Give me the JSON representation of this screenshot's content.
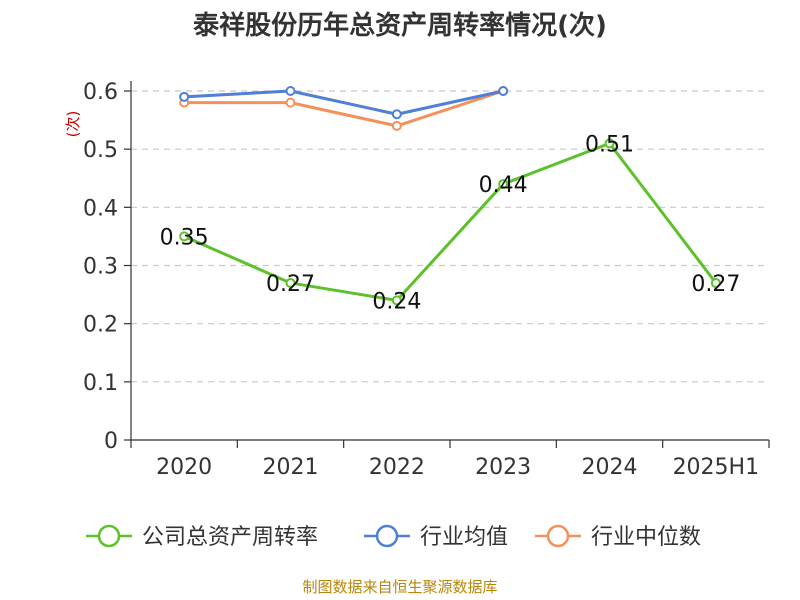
{
  "chart_data": {
    "type": "line",
    "title": "泰祥股份历年总资产周转率情况(次)",
    "ylabel": "(次)",
    "xlabel": "",
    "categories": [
      "2020",
      "2021",
      "2022",
      "2023",
      "2024",
      "2025H1"
    ],
    "ylim": [
      0,
      0.6
    ],
    "yticks": [
      "0",
      "0.1",
      "0.2",
      "0.3",
      "0.4",
      "0.5",
      "0.6"
    ],
    "grid": true,
    "legend_position": "bottom",
    "series": [
      {
        "name": "公司总资产周转率",
        "color": "#5cc12a",
        "values": [
          0.35,
          0.27,
          0.24,
          0.44,
          0.51,
          0.27
        ],
        "labels": [
          "0.35",
          "0.27",
          "0.24",
          "0.44",
          "0.51",
          "0.27"
        ]
      },
      {
        "name": "行业均值",
        "color": "#4f7fd6",
        "values": [
          0.59,
          0.6,
          0.56,
          0.6,
          null,
          null
        ]
      },
      {
        "name": "行业中位数",
        "color": "#f5905a",
        "values": [
          0.58,
          0.58,
          0.54,
          0.6,
          null,
          null
        ]
      }
    ],
    "source": "制图数据来自恒生聚源数据库"
  }
}
